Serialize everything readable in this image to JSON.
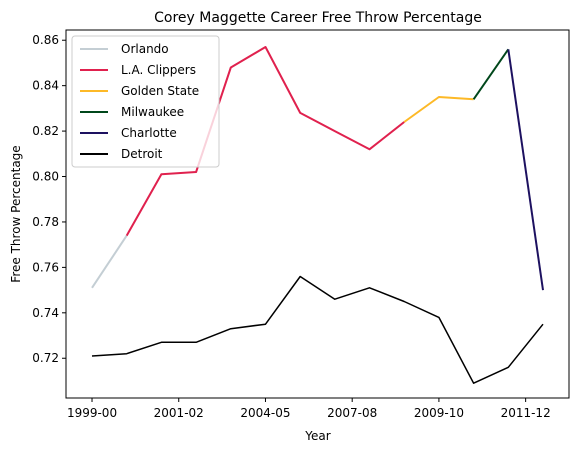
{
  "chart_data": {
    "type": "line",
    "title": "Corey Maggette Career Free Throw Percentage",
    "xlabel": "Year",
    "ylabel": "Free Throw Percentage",
    "x_tick_labels": [
      "1999-00",
      "2001-02",
      "2004-05",
      "2007-08",
      "2009-10",
      "2011-12"
    ],
    "x_tick_positions": [
      0,
      2.5,
      5,
      7.5,
      10,
      12.5
    ],
    "y_ticks": [
      "0.72",
      "0.74",
      "0.76",
      "0.78",
      "0.80",
      "0.82",
      "0.84",
      "0.86"
    ],
    "y_tick_values": [
      0.72,
      0.74,
      0.76,
      0.78,
      0.8,
      0.82,
      0.84,
      0.86
    ],
    "xlim": [
      -0.75,
      13.75
    ],
    "ylim": [
      0.7025,
      0.8645
    ],
    "grid": false,
    "legend_position": "top-left",
    "series": [
      {
        "name": "Orlando",
        "color": "#c4ced4",
        "x": [
          0,
          1
        ],
        "y": [
          0.751,
          0.774
        ]
      },
      {
        "name": "L.A. Clippers",
        "color": "#e0214e",
        "x": [
          1,
          2,
          3,
          4,
          5,
          6,
          7,
          8,
          9
        ],
        "y": [
          0.774,
          0.801,
          0.802,
          0.848,
          0.857,
          0.828,
          0.82,
          0.812,
          0.824
        ]
      },
      {
        "name": "Golden State",
        "color": "#fdb927",
        "x": [
          9,
          10,
          11
        ],
        "y": [
          0.824,
          0.835,
          0.834
        ]
      },
      {
        "name": "Milwaukee",
        "color": "#00471b",
        "x": [
          11,
          12
        ],
        "y": [
          0.834,
          0.856
        ]
      },
      {
        "name": "Charlotte",
        "color": "#1d1160",
        "x": [
          12,
          13
        ],
        "y": [
          0.856,
          0.75
        ]
      },
      {
        "name": "Detroit",
        "color": "#000000",
        "x": [
          0,
          1,
          2,
          3,
          4,
          5,
          6,
          7,
          8,
          9,
          10,
          11,
          12,
          13
        ],
        "y": [
          0.721,
          0.722,
          0.727,
          0.727,
          0.733,
          0.735,
          0.756,
          0.746,
          0.751,
          0.745,
          0.738,
          0.709,
          0.716,
          0.735
        ]
      }
    ]
  }
}
